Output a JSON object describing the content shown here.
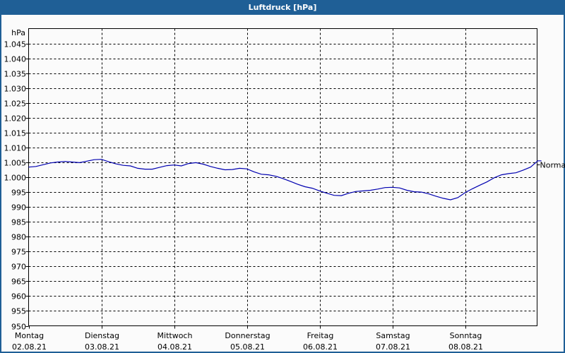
{
  "window": {
    "title": "Luftdruck [hPa]"
  },
  "chart_data": {
    "type": "line",
    "title": "Luftdruck [hPa]",
    "ylabel": "hPa",
    "xlabel": "",
    "ylim": [
      950,
      1050
    ],
    "grid": true,
    "y_ticks": [
      "1.045",
      "1.040",
      "1.035",
      "1.030",
      "1.025",
      "1.020",
      "1.015",
      "1.010",
      "1.005",
      "1.000",
      "995",
      "990",
      "985",
      "980",
      "975",
      "970",
      "965",
      "960",
      "955",
      "950"
    ],
    "y_tick_values": [
      1045,
      1040,
      1035,
      1030,
      1025,
      1020,
      1015,
      1010,
      1005,
      1000,
      995,
      990,
      985,
      980,
      975,
      970,
      965,
      960,
      955,
      950
    ],
    "x_ticks": [
      {
        "day": "Montag",
        "date": "02.08.21"
      },
      {
        "day": "Dienstag",
        "date": "03.08.21"
      },
      {
        "day": "Mittwoch",
        "date": "04.08.21"
      },
      {
        "day": "Donnerstag",
        "date": "05.08.21"
      },
      {
        "day": "Freitag",
        "date": "06.08.21"
      },
      {
        "day": "Samstag",
        "date": "07.08.21"
      },
      {
        "day": "Sonntag",
        "date": "08.08.21"
      }
    ],
    "reference_line": {
      "label": "Normal",
      "value": 1005
    },
    "line_color": "#0000b0",
    "series": [
      {
        "name": "Luftdruck",
        "x_days": [
          0,
          0.1,
          0.2,
          0.3,
          0.4,
          0.5,
          0.6,
          0.7,
          0.8,
          0.9,
          1.0,
          1.1,
          1.2,
          1.3,
          1.4,
          1.5,
          1.6,
          1.7,
          1.8,
          1.9,
          2.0,
          2.1,
          2.2,
          2.3,
          2.4,
          2.5,
          2.6,
          2.7,
          2.8,
          2.9,
          3.0,
          3.1,
          3.2,
          3.3,
          3.4,
          3.5,
          3.6,
          3.7,
          3.8,
          3.9,
          4.0,
          4.1,
          4.2,
          4.3,
          4.4,
          4.5,
          4.6,
          4.7,
          4.8,
          4.9,
          5.0,
          5.1,
          5.2,
          5.3,
          5.4,
          5.5,
          5.6,
          5.7,
          5.8,
          5.9,
          6.0,
          6.1,
          6.2,
          6.3,
          6.4,
          6.5,
          6.6,
          6.7,
          6.8,
          6.9,
          7.0,
          7.05
        ],
        "values": [
          1003.4,
          1003.6,
          1004.2,
          1004.8,
          1005.1,
          1005.3,
          1005.1,
          1004.9,
          1005.4,
          1005.9,
          1006.0,
          1005.2,
          1004.5,
          1004.0,
          1003.8,
          1003.0,
          1002.7,
          1002.7,
          1003.3,
          1003.9,
          1004.1,
          1003.8,
          1004.6,
          1004.9,
          1004.4,
          1003.6,
          1003.0,
          1002.5,
          1002.6,
          1003.0,
          1002.8,
          1001.8,
          1001.0,
          1000.8,
          1000.3,
          999.5,
          998.6,
          997.6,
          996.8,
          996.3,
          995.4,
          994.6,
          993.9,
          993.8,
          994.6,
          995.2,
          995.4,
          995.6,
          996.0,
          996.5,
          996.6,
          996.4,
          995.6,
          995.1,
          995.0,
          994.4,
          993.6,
          992.9,
          992.4,
          993.1,
          994.8,
          996.1,
          997.3,
          998.4,
          999.8,
          1000.8,
          1001.2,
          1001.5,
          1002.4,
          1003.4,
          1005.5,
          1005.5
        ]
      }
    ]
  }
}
